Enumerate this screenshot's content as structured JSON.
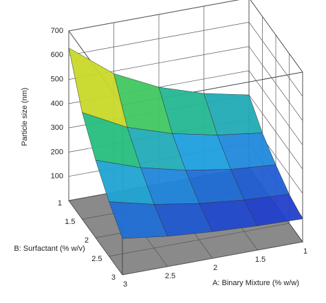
{
  "chart_data": {
    "type": "surface",
    "xlabel": "A: Binary Mixture (% w/w)",
    "ylabel": "B: Surfactant (% w/v)",
    "zlabel": "Particle size (nm)",
    "x": [
      1,
      1.5,
      2,
      2.5,
      3
    ],
    "y": [
      1,
      1.5,
      2,
      2.5,
      3
    ],
    "z": [
      [
        300,
        340,
        400,
        490,
        630
      ],
      [
        220,
        245,
        285,
        345,
        440
      ],
      [
        165,
        180,
        210,
        255,
        320
      ],
      [
        120,
        130,
        150,
        180,
        225
      ],
      [
        95,
        100,
        110,
        125,
        150
      ]
    ],
    "xlim": [
      1,
      3
    ],
    "ylim": [
      1,
      3
    ],
    "zlim": [
      0,
      700
    ],
    "xticks": [
      1,
      1.5,
      2,
      2.5,
      3
    ],
    "yticks": [
      1,
      1.5,
      2,
      2.5,
      3
    ],
    "zticks": [
      100,
      200,
      300,
      400,
      500,
      600,
      700
    ],
    "grid": true,
    "colormap": [
      "#2233c8",
      "#1f9ee0",
      "#27c46a",
      "#e6dc1e",
      "#d8321a"
    ],
    "floor_color": "#8a8a8a"
  }
}
